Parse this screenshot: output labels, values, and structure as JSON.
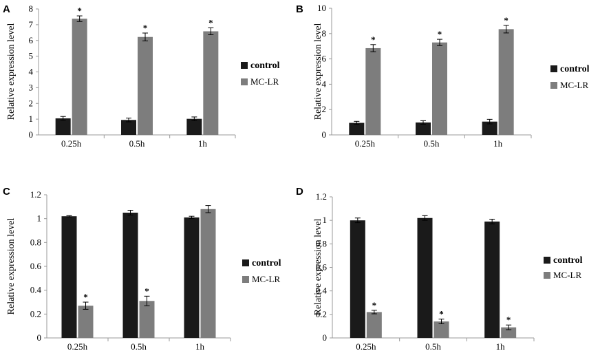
{
  "colors": {
    "control": "#1a1a1a",
    "mc_lr": "#7d7d7d",
    "axis": "#999999",
    "text": "#000000"
  },
  "chart_data": [
    {
      "panel": "A",
      "type": "bar",
      "categories": [
        "0.25h",
        "0.5h",
        "1h"
      ],
      "series": [
        {
          "name": "control",
          "values": [
            1.05,
            0.95,
            1.02
          ],
          "errors": [
            0.12,
            0.12,
            0.12
          ]
        },
        {
          "name": "MC-LR",
          "values": [
            7.38,
            6.22,
            6.58
          ],
          "errors": [
            0.18,
            0.25,
            0.22
          ]
        }
      ],
      "significance": [
        "*",
        "*",
        "*"
      ],
      "ylabel": "Relative expression level",
      "ylim": [
        0,
        8
      ],
      "yticks": [
        "0",
        "1",
        "2",
        "3",
        "4",
        "5",
        "6",
        "7",
        "8"
      ],
      "legend": "right"
    },
    {
      "panel": "B",
      "type": "bar",
      "categories": [
        "0.25h",
        "0.5h",
        "1h"
      ],
      "series": [
        {
          "name": "control",
          "values": [
            0.95,
            0.98,
            1.05
          ],
          "errors": [
            0.12,
            0.14,
            0.18
          ]
        },
        {
          "name": "MC-LR",
          "values": [
            6.85,
            7.3,
            8.35
          ],
          "errors": [
            0.28,
            0.25,
            0.3
          ]
        }
      ],
      "significance": [
        "*",
        "*",
        "*"
      ],
      "ylabel": "Relative expression level",
      "ylim": [
        0,
        10
      ],
      "yticks": [
        "0",
        "2",
        "4",
        "6",
        "8",
        "10"
      ],
      "legend": "right"
    },
    {
      "panel": "C",
      "type": "bar",
      "categories": [
        "0.25h",
        "0.5h",
        "1h"
      ],
      "series": [
        {
          "name": "control",
          "values": [
            1.02,
            1.05,
            1.01
          ],
          "errors": [
            0.005,
            0.02,
            0.01
          ]
        },
        {
          "name": "MC-LR",
          "values": [
            0.27,
            0.31,
            1.08
          ],
          "errors": [
            0.03,
            0.04,
            0.03
          ]
        }
      ],
      "significance": [
        "*",
        "*",
        ""
      ],
      "ylabel": "Relative expression level",
      "ylim": [
        0,
        1.2
      ],
      "yticks": [
        "0",
        "0.2",
        "0.4",
        "0.6",
        "0.8",
        "1",
        "1.2"
      ],
      "legend": "right"
    },
    {
      "panel": "D",
      "type": "bar",
      "categories": [
        "0.25h",
        "0.5h",
        "1h"
      ],
      "series": [
        {
          "name": "control",
          "values": [
            1.0,
            1.02,
            0.99
          ],
          "errors": [
            0.02,
            0.02,
            0.02
          ]
        },
        {
          "name": "MC-LR",
          "values": [
            0.22,
            0.14,
            0.09
          ],
          "errors": [
            0.015,
            0.02,
            0.02
          ]
        }
      ],
      "significance": [
        "*",
        "*",
        "*"
      ],
      "ylabel": "Relative expression level",
      "ylim": [
        0,
        1.2
      ],
      "yticks": [
        "0",
        "0.2",
        "0.4",
        "0.6",
        "0.8",
        "1",
        "1.2"
      ],
      "legend": "right"
    }
  ]
}
